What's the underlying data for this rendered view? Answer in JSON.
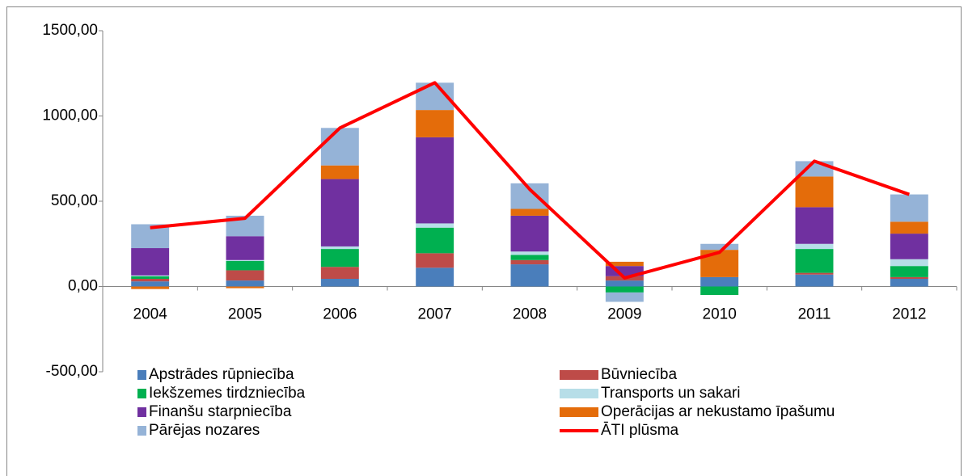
{
  "chart_data": {
    "type": "bar",
    "stacked": true,
    "categories": [
      "2004",
      "2005",
      "2006",
      "2007",
      "2008",
      "2009",
      "2010",
      "2011",
      "2012"
    ],
    "ylim": [
      -500,
      1500
    ],
    "yticks": [
      {
        "value": -500,
        "label": "-500,00"
      },
      {
        "value": 0,
        "label": "0,00"
      },
      {
        "value": 500,
        "label": "500,00"
      },
      {
        "value": 1000,
        "label": "1000,00"
      },
      {
        "value": 1500,
        "label": "1500,00"
      }
    ],
    "grid": false,
    "legend": "bottom",
    "series": [
      {
        "name": "Apstrādes rūpniecība",
        "color": "#4a7ebb",
        "values": [
          30,
          35,
          45,
          110,
          130,
          35,
          55,
          70,
          45
        ]
      },
      {
        "name": "Būvniecība",
        "color": "#be4b48",
        "values": [
          15,
          60,
          70,
          85,
          25,
          25,
          0,
          10,
          10
        ]
      },
      {
        "name": "Iekšzemes tirdzniecība",
        "color": "#00b050",
        "values": [
          15,
          55,
          105,
          150,
          30,
          -35,
          -50,
          140,
          65
        ]
      },
      {
        "name": "Transports un sakari",
        "color": "#b7dee8",
        "values": [
          5,
          5,
          15,
          25,
          20,
          0,
          0,
          30,
          40
        ]
      },
      {
        "name": "Finanšu starpniecība",
        "color": "#7030a0",
        "values": [
          160,
          140,
          395,
          505,
          210,
          60,
          0,
          215,
          150
        ]
      },
      {
        "name": "Operācijas ar nekustamo īpašumu",
        "color": "#e46c0a",
        "values": [
          -15,
          -10,
          80,
          160,
          40,
          25,
          160,
          180,
          70
        ]
      },
      {
        "name": "Pārējas nozares",
        "color": "#95b3d7",
        "values": [
          140,
          120,
          220,
          160,
          150,
          -55,
          35,
          90,
          160
        ]
      },
      {
        "name": "ĀTI plūsma",
        "color": "#ff0000",
        "type": "line",
        "values": [
          345,
          400,
          930,
          1195,
          570,
          50,
          200,
          735,
          540
        ]
      }
    ]
  }
}
